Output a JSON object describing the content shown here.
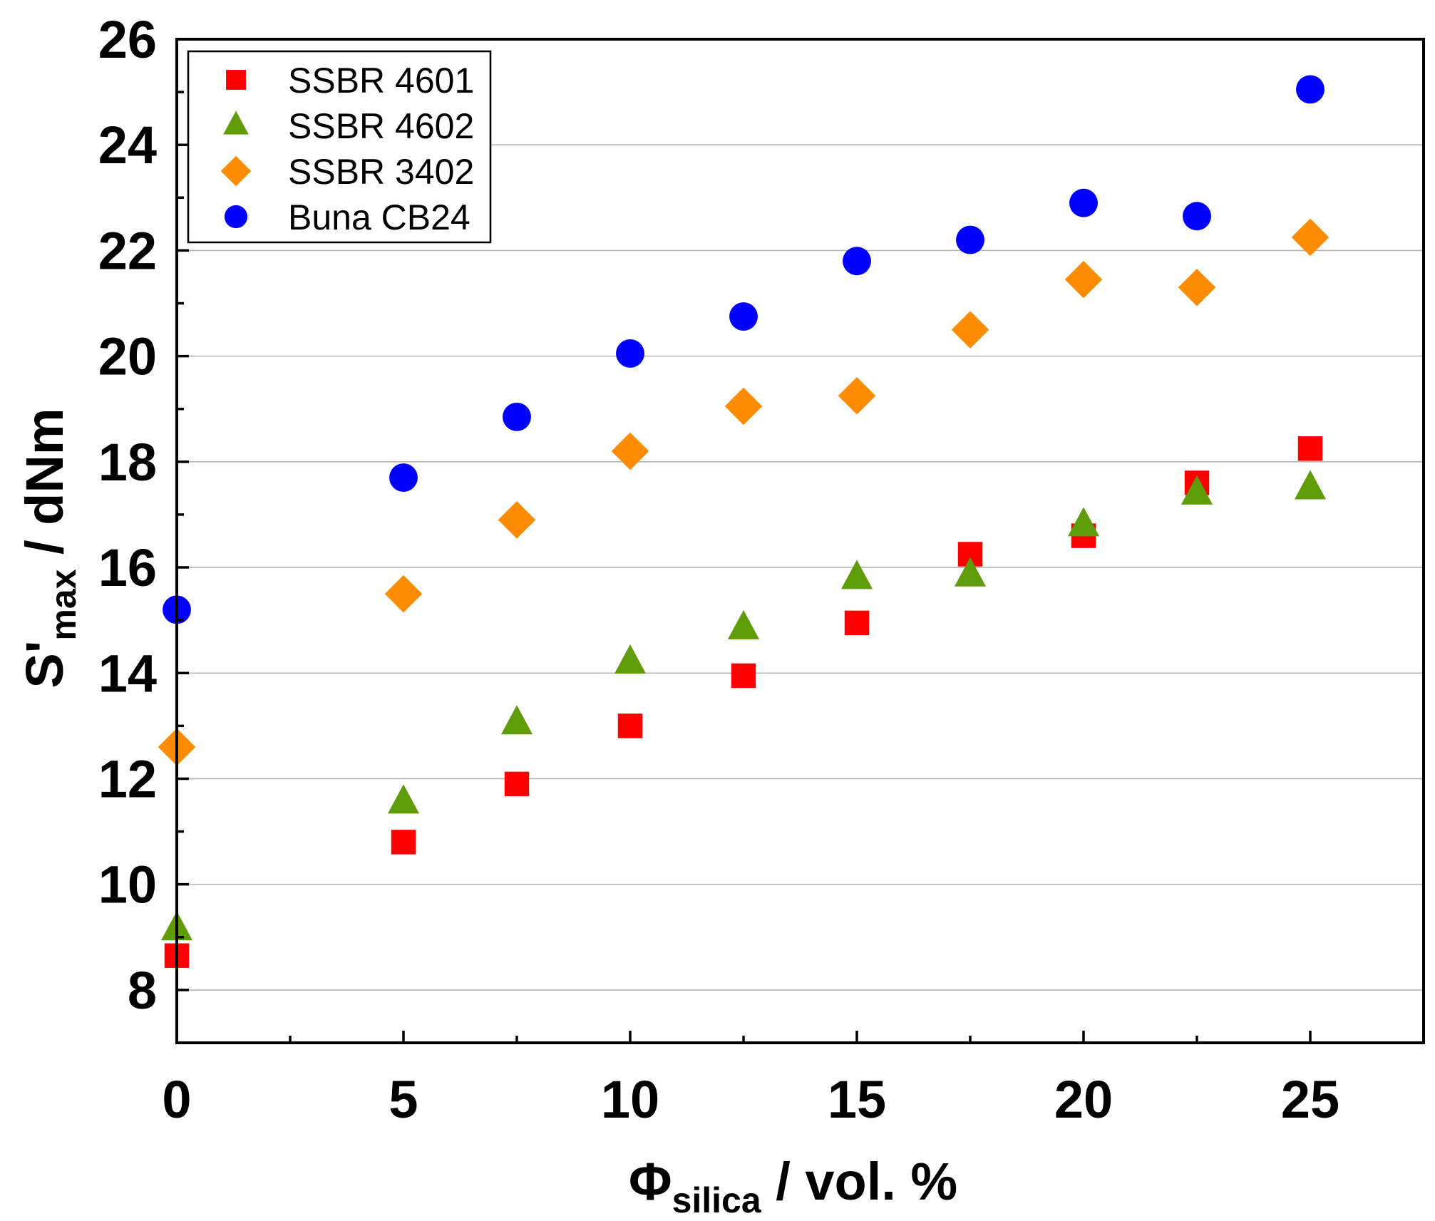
{
  "chart_data": {
    "type": "scatter",
    "xlabel": {
      "main": "Φ",
      "sub": "silica",
      "rest": " / vol. %"
    },
    "ylabel": {
      "main": "S'",
      "sub": "max",
      "rest": " / dNm"
    },
    "xlim": [
      0,
      27.5
    ],
    "ylim": [
      7,
      26
    ],
    "x_ticks": [
      0,
      5,
      10,
      15,
      20,
      25
    ],
    "x_minor_ticks": [
      2.5,
      7.5,
      12.5,
      17.5,
      22.5
    ],
    "y_ticks": [
      8,
      10,
      12,
      14,
      16,
      18,
      20,
      22,
      24,
      26
    ],
    "y_minor_ticks": [
      9,
      11,
      13,
      15,
      17,
      19,
      21,
      23,
      25
    ],
    "grid": "horizontal",
    "legend_position": "top-left",
    "series": [
      {
        "name": "SSBR 4601",
        "marker": "square",
        "color": "#ff0000",
        "points": [
          [
            0,
            8.65
          ],
          [
            5,
            10.8
          ],
          [
            7.5,
            11.9
          ],
          [
            10,
            13.0
          ],
          [
            12.5,
            13.95
          ],
          [
            15,
            14.95
          ],
          [
            17.5,
            16.25
          ],
          [
            20,
            16.6
          ],
          [
            22.5,
            17.6
          ],
          [
            25,
            18.25
          ]
        ]
      },
      {
        "name": "SSBR 4602",
        "marker": "triangle",
        "color": "#5f9c0a",
        "points": [
          [
            0,
            9.15
          ],
          [
            5,
            11.55
          ],
          [
            7.5,
            13.05
          ],
          [
            10,
            14.2
          ],
          [
            12.5,
            14.85
          ],
          [
            15,
            15.8
          ],
          [
            17.5,
            15.85
          ],
          [
            20,
            16.8
          ],
          [
            22.5,
            17.4
          ],
          [
            25,
            17.5
          ]
        ]
      },
      {
        "name": "SSBR 3402",
        "marker": "diamond",
        "color": "#ff8c00",
        "points": [
          [
            0,
            12.6
          ],
          [
            5,
            15.5
          ],
          [
            7.5,
            16.9
          ],
          [
            10,
            18.2
          ],
          [
            12.5,
            19.05
          ],
          [
            15,
            19.25
          ],
          [
            17.5,
            20.5
          ],
          [
            20,
            21.45
          ],
          [
            22.5,
            21.3
          ],
          [
            25,
            22.25
          ]
        ]
      },
      {
        "name": "Buna CB24",
        "marker": "circle",
        "color": "#0000ff",
        "points": [
          [
            0,
            15.2
          ],
          [
            5,
            17.7
          ],
          [
            7.5,
            18.85
          ],
          [
            10,
            20.05
          ],
          [
            12.5,
            20.75
          ],
          [
            15,
            21.8
          ],
          [
            17.5,
            22.2
          ],
          [
            20,
            22.9
          ],
          [
            22.5,
            22.65
          ],
          [
            25,
            25.05
          ]
        ]
      }
    ]
  }
}
